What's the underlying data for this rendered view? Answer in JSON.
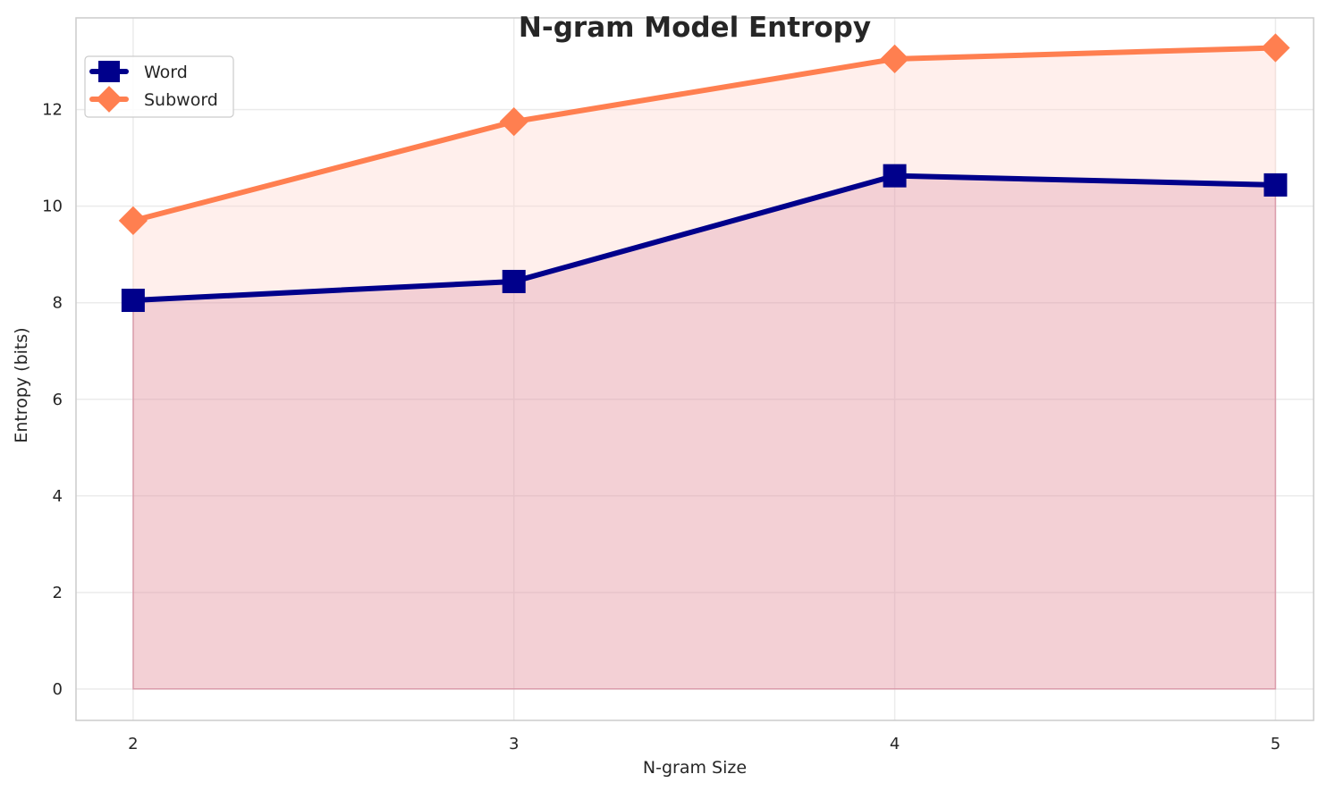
{
  "chart_data": {
    "type": "area",
    "title": "N-gram Model Entropy",
    "xlabel": "N-gram Size",
    "ylabel": "Entropy (bits)",
    "x": [
      2,
      3,
      4,
      5
    ],
    "xticks": [
      "2",
      "3",
      "4",
      "5"
    ],
    "yticks": [
      "0",
      "2",
      "4",
      "6",
      "8",
      "10",
      "12"
    ],
    "ylim": [
      -0.65,
      13.9
    ],
    "grid": true,
    "legend_position": "top-left",
    "series": [
      {
        "name": "Word",
        "values": [
          8.05,
          8.44,
          10.63,
          10.44
        ],
        "color": "#00008b",
        "marker": "square",
        "fill": "#a0003c"
      },
      {
        "name": "Subword",
        "values": [
          9.7,
          11.75,
          13.05,
          13.28
        ],
        "color": "#ff7f50",
        "marker": "diamond",
        "fill": "#ffd6cc"
      }
    ]
  }
}
